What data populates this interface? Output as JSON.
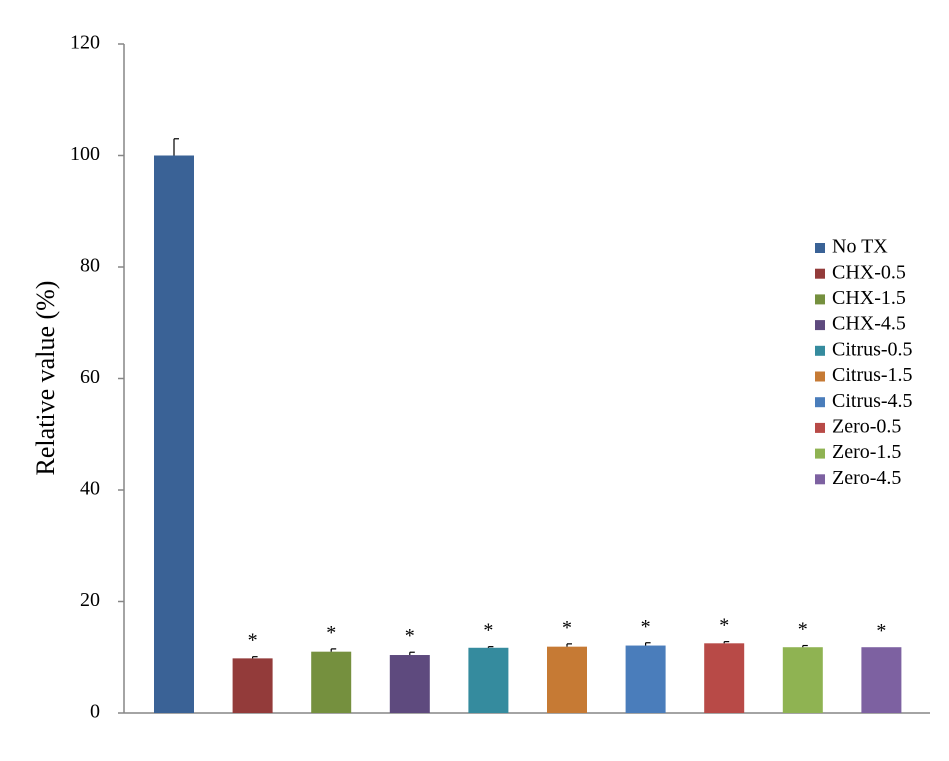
{
  "chart_data": {
    "type": "bar",
    "title": "",
    "xlabel": "",
    "ylabel": "Relative value (%)",
    "ylim": [
      0,
      120
    ],
    "yticks": [
      0,
      20,
      40,
      60,
      80,
      100,
      120
    ],
    "grid": false,
    "legend_position": "right",
    "categories": [
      "No TX",
      "CHX-0.5",
      "CHX-1.5",
      "CHX-4.5",
      "Citrus-0.5",
      "Citrus-1.5",
      "Citrus-4.5",
      "Zero-0.5",
      "Zero-1.5",
      "Zero-4.5"
    ],
    "values": [
      100,
      9.8,
      11.0,
      10.4,
      11.7,
      11.9,
      12.1,
      12.5,
      11.8,
      11.8
    ],
    "errors": [
      3.0,
      0.3,
      0.5,
      0.5,
      0.2,
      0.5,
      0.5,
      0.3,
      0.3,
      0.0
    ],
    "significance": [
      "",
      "*",
      "*",
      "*",
      "*",
      "*",
      "*",
      "*",
      "*",
      "*"
    ],
    "colors": [
      "#3A6296",
      "#933B3A",
      "#75903E",
      "#5E4A7E",
      "#358B9E",
      "#C67A34",
      "#4A7DBB",
      "#B84A47",
      "#8FB352",
      "#7D61A1"
    ]
  }
}
